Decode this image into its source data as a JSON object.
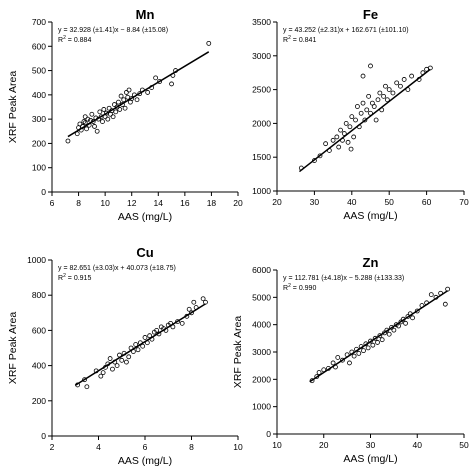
{
  "figure": {
    "background": "#ffffff",
    "ink": "#000000"
  },
  "chart_data": [
    {
      "type": "scatter",
      "title": "Mn",
      "xlabel": "AAS (mg/L)",
      "ylabel": "XRF Peak Area",
      "xlim": [
        6,
        20
      ],
      "ylim": [
        0,
        700
      ],
      "xticks": [
        6,
        8,
        10,
        12,
        14,
        16,
        18,
        20
      ],
      "yticks": [
        0,
        100,
        200,
        300,
        400,
        500,
        600,
        700
      ],
      "equation": "y = 32.928 (±1.41)x − 8.84 (±15.08)",
      "r2_label": "R",
      "r2_value": " = 0.884",
      "fit": {
        "slope": 32.928,
        "intercept": -8.84,
        "x_range": [
          7.2,
          17.8
        ]
      },
      "marker": "open-circle",
      "legend": "none",
      "grid": false,
      "points": [
        [
          7.2,
          210
        ],
        [
          7.9,
          240
        ],
        [
          8.0,
          265
        ],
        [
          8.1,
          280
        ],
        [
          8.2,
          255
        ],
        [
          8.3,
          270
        ],
        [
          8.4,
          290
        ],
        [
          8.5,
          285
        ],
        [
          8.5,
          310
        ],
        [
          8.6,
          260
        ],
        [
          8.7,
          300
        ],
        [
          8.8,
          275
        ],
        [
          8.9,
          295
        ],
        [
          9.0,
          320
        ],
        [
          9.1,
          290
        ],
        [
          9.2,
          270
        ],
        [
          9.3,
          305
        ],
        [
          9.4,
          250
        ],
        [
          9.5,
          300
        ],
        [
          9.6,
          330
        ],
        [
          9.7,
          310
        ],
        [
          9.8,
          290
        ],
        [
          9.9,
          340
        ],
        [
          10.0,
          310
        ],
        [
          10.1,
          325
        ],
        [
          10.2,
          300
        ],
        [
          10.3,
          345
        ],
        [
          10.4,
          320
        ],
        [
          10.5,
          335
        ],
        [
          10.6,
          310
        ],
        [
          10.7,
          360
        ],
        [
          10.8,
          330
        ],
        [
          10.9,
          350
        ],
        [
          11.0,
          370
        ],
        [
          11.1,
          340
        ],
        [
          11.2,
          395
        ],
        [
          11.3,
          360
        ],
        [
          11.4,
          380
        ],
        [
          11.5,
          345
        ],
        [
          11.6,
          410
        ],
        [
          11.7,
          390
        ],
        [
          11.8,
          420
        ],
        [
          11.9,
          370
        ],
        [
          12.0,
          385
        ],
        [
          12.2,
          400
        ],
        [
          12.4,
          380
        ],
        [
          12.6,
          405
        ],
        [
          12.8,
          420
        ],
        [
          13.2,
          410
        ],
        [
          13.5,
          430
        ],
        [
          13.8,
          470
        ],
        [
          14.1,
          455
        ],
        [
          15.0,
          445
        ],
        [
          15.1,
          480
        ],
        [
          15.3,
          500
        ],
        [
          17.8,
          612
        ]
      ]
    },
    {
      "type": "scatter",
      "title": "Fe",
      "xlabel": "AAS (mg/L)",
      "ylabel": "",
      "xlim": [
        20,
        70
      ],
      "ylim": [
        1000,
        3500
      ],
      "xticks": [
        20,
        30,
        40,
        50,
        60,
        70
      ],
      "yticks": [
        1000,
        1500,
        2000,
        2500,
        3000,
        3500
      ],
      "equation": "y = 43.252 (±2.31)x + 162.671 (±101.10)",
      "r2_label": "R",
      "r2_value": " = 0.841",
      "fit": {
        "slope": 43.252,
        "intercept": 162.671,
        "x_range": [
          26,
          61
        ]
      },
      "marker": "open-circle",
      "legend": "none",
      "grid": false,
      "points": [
        [
          26.5,
          1340
        ],
        [
          30.0,
          1450
        ],
        [
          31.5,
          1520
        ],
        [
          33.0,
          1700
        ],
        [
          34.0,
          1600
        ],
        [
          35.0,
          1750
        ],
        [
          36.0,
          1800
        ],
        [
          36.5,
          1650
        ],
        [
          37.0,
          1900
        ],
        [
          37.5,
          1750
        ],
        [
          38.0,
          1850
        ],
        [
          38.5,
          2000
        ],
        [
          39.0,
          1720
        ],
        [
          39.5,
          1950
        ],
        [
          39.8,
          1620
        ],
        [
          40.0,
          2100
        ],
        [
          40.5,
          1800
        ],
        [
          41.0,
          2050
        ],
        [
          41.5,
          2250
        ],
        [
          42.0,
          1950
        ],
        [
          42.5,
          2150
        ],
        [
          43.0,
          2300
        ],
        [
          43.5,
          2050
        ],
        [
          44.0,
          2200
        ],
        [
          44.5,
          2400
        ],
        [
          45.0,
          2150
        ],
        [
          45.5,
          2300
        ],
        [
          46.0,
          2250
        ],
        [
          46.5,
          2050
        ],
        [
          47.0,
          2350
        ],
        [
          47.5,
          2450
        ],
        [
          48.0,
          2200
        ],
        [
          48.5,
          2400
        ],
        [
          49.0,
          2550
        ],
        [
          49.5,
          2350
        ],
        [
          50.0,
          2500
        ],
        [
          51.0,
          2450
        ],
        [
          52.0,
          2600
        ],
        [
          53.0,
          2550
        ],
        [
          54.0,
          2650
        ],
        [
          55.0,
          2500
        ],
        [
          56.0,
          2700
        ],
        [
          58.0,
          2650
        ],
        [
          59.0,
          2750
        ],
        [
          60.0,
          2800
        ],
        [
          61.0,
          2820
        ],
        [
          43.0,
          2700
        ],
        [
          45.0,
          2850
        ]
      ]
    },
    {
      "type": "scatter",
      "title": "Cu",
      "xlabel": "AAS (mg/L)",
      "ylabel": "XRF Peak Area",
      "xlim": [
        2,
        10
      ],
      "ylim": [
        0,
        1000
      ],
      "xticks": [
        2,
        4,
        6,
        8,
        10
      ],
      "yticks": [
        0,
        200,
        400,
        600,
        800,
        1000
      ],
      "equation": "y = 82.651 (±3.03)x + 40.073 (±18.75)",
      "r2_label": "R",
      "r2_value": " = 0.915",
      "fit": {
        "slope": 82.651,
        "intercept": 40.073,
        "x_range": [
          3.0,
          8.6
        ]
      },
      "marker": "open-circle",
      "legend": "none",
      "grid": false,
      "points": [
        [
          3.1,
          290
        ],
        [
          3.4,
          320
        ],
        [
          3.5,
          280
        ],
        [
          3.9,
          370
        ],
        [
          4.1,
          340
        ],
        [
          4.2,
          360
        ],
        [
          4.3,
          390
        ],
        [
          4.4,
          410
        ],
        [
          4.5,
          440
        ],
        [
          4.6,
          380
        ],
        [
          4.7,
          420
        ],
        [
          4.8,
          400
        ],
        [
          4.9,
          460
        ],
        [
          5.0,
          430
        ],
        [
          5.1,
          470
        ],
        [
          5.2,
          420
        ],
        [
          5.3,
          450
        ],
        [
          5.4,
          500
        ],
        [
          5.5,
          480
        ],
        [
          5.6,
          520
        ],
        [
          5.7,
          490
        ],
        [
          5.8,
          530
        ],
        [
          5.9,
          510
        ],
        [
          6.0,
          560
        ],
        [
          6.1,
          530
        ],
        [
          6.2,
          570
        ],
        [
          6.3,
          550
        ],
        [
          6.4,
          590
        ],
        [
          6.5,
          600
        ],
        [
          6.6,
          580
        ],
        [
          6.7,
          620
        ],
        [
          6.8,
          610
        ],
        [
          6.9,
          600
        ],
        [
          7.0,
          630
        ],
        [
          7.1,
          640
        ],
        [
          7.2,
          620
        ],
        [
          7.4,
          650
        ],
        [
          7.6,
          640
        ],
        [
          7.8,
          680
        ],
        [
          7.9,
          720
        ],
        [
          8.0,
          700
        ],
        [
          8.1,
          760
        ],
        [
          8.2,
          730
        ],
        [
          8.5,
          780
        ],
        [
          8.6,
          760
        ]
      ]
    },
    {
      "type": "scatter",
      "title": "Zn",
      "xlabel": "AAS (mg/L)",
      "ylabel": "XRF Peak Area",
      "xlim": [
        10,
        50
      ],
      "ylim": [
        0,
        6000
      ],
      "xticks": [
        10,
        20,
        30,
        40,
        50
      ],
      "yticks": [
        0,
        1000,
        2000,
        3000,
        4000,
        5000,
        6000
      ],
      "equation": "y = 112.781 (±4.18)x − 5.288 (±133.33)",
      "r2_label": "R",
      "r2_value": " = 0.990",
      "fit": {
        "slope": 112.781,
        "intercept": -5.288,
        "x_range": [
          17,
          46.5
        ]
      },
      "marker": "open-circle",
      "legend": "none",
      "grid": false,
      "points": [
        [
          17.5,
          1950
        ],
        [
          18.5,
          2100
        ],
        [
          19.0,
          2250
        ],
        [
          20.0,
          2350
        ],
        [
          21.0,
          2400
        ],
        [
          22.0,
          2600
        ],
        [
          22.5,
          2450
        ],
        [
          23.0,
          2800
        ],
        [
          24.0,
          2700
        ],
        [
          25.0,
          2900
        ],
        [
          25.5,
          2600
        ],
        [
          26.0,
          3000
        ],
        [
          26.5,
          2850
        ],
        [
          27.0,
          3100
        ],
        [
          27.5,
          2950
        ],
        [
          28.0,
          3200
        ],
        [
          28.5,
          3050
        ],
        [
          29.0,
          3300
        ],
        [
          29.5,
          3150
        ],
        [
          30.0,
          3400
        ],
        [
          30.5,
          3250
        ],
        [
          31.0,
          3500
        ],
        [
          31.5,
          3350
        ],
        [
          32.0,
          3600
        ],
        [
          32.5,
          3450
        ],
        [
          33.0,
          3700
        ],
        [
          33.5,
          3800
        ],
        [
          34.0,
          3650
        ],
        [
          34.5,
          3900
        ],
        [
          35.0,
          3800
        ],
        [
          35.5,
          4000
        ],
        [
          36.0,
          3950
        ],
        [
          36.5,
          4100
        ],
        [
          37.0,
          4200
        ],
        [
          37.5,
          4050
        ],
        [
          38.0,
          4300
        ],
        [
          38.5,
          4400
        ],
        [
          39.0,
          4250
        ],
        [
          40.0,
          4500
        ],
        [
          41.0,
          4700
        ],
        [
          42.0,
          4800
        ],
        [
          43.0,
          5100
        ],
        [
          44.0,
          5000
        ],
        [
          45.0,
          5150
        ],
        [
          46.0,
          4750
        ],
        [
          46.5,
          5300
        ]
      ]
    }
  ]
}
